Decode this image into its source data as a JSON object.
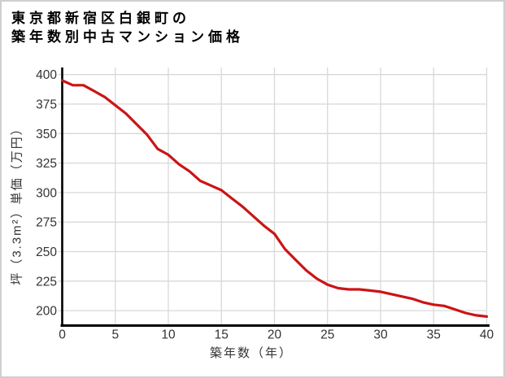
{
  "title": {
    "line1": "東京都新宿区白銀町の",
    "line2": "築年数別中古マンション価格"
  },
  "axes": {
    "y_label": "坪（3.3m²）単価（万円）",
    "x_label": "築年数（年）"
  },
  "chart_data": {
    "type": "line",
    "title": "東京都新宿区白銀町の築年数別中古マンション価格",
    "xlabel": "築年数（年）",
    "ylabel": "坪（3.3m²）単価（万円）",
    "x": [
      0,
      1,
      2,
      3,
      4,
      5,
      6,
      7,
      8,
      9,
      10,
      11,
      12,
      13,
      14,
      15,
      16,
      17,
      18,
      19,
      20,
      21,
      22,
      23,
      24,
      25,
      26,
      27,
      28,
      29,
      30,
      31,
      32,
      33,
      34,
      35,
      36,
      37,
      38,
      39,
      40
    ],
    "values": [
      395,
      391,
      391,
      386,
      381,
      374,
      367,
      358,
      349,
      337,
      332,
      324,
      318,
      310,
      306,
      302,
      295,
      288,
      280,
      272,
      265,
      252,
      243,
      234,
      227,
      222,
      219,
      218,
      218,
      217,
      216,
      214,
      212,
      210,
      207,
      205,
      204,
      201,
      198,
      196,
      195
    ],
    "x_ticks": [
      0,
      5,
      10,
      15,
      20,
      25,
      30,
      35,
      40
    ],
    "y_ticks": [
      200,
      225,
      250,
      275,
      300,
      325,
      350,
      375,
      400
    ],
    "xlim": [
      0,
      40
    ],
    "ylim": [
      187,
      406
    ],
    "grid": "on",
    "legend": "none",
    "line_color": "#cc1414",
    "grid_color": "#d8d8d8",
    "axis_color": "#000000",
    "tick_label_color": "#333333"
  }
}
